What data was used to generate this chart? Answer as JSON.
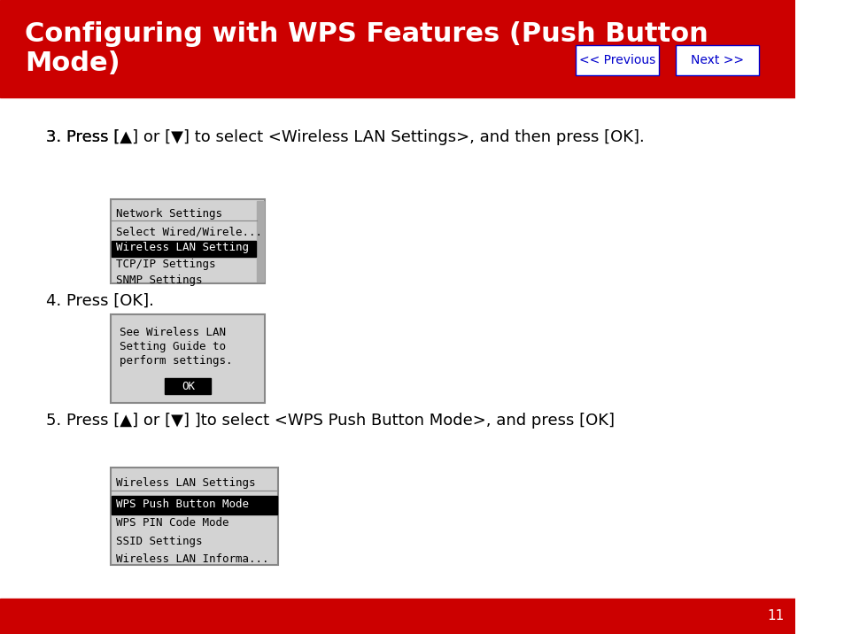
{
  "header_bg": "#CC0000",
  "header_text": "Configuring with WPS Features (Push Button\nMode)",
  "header_text_color": "#FFFFFF",
  "header_font_size": 22,
  "footer_bg": "#CC0000",
  "footer_number": "11",
  "footer_text_color": "#FFFFFF",
  "body_bg": "#FFFFFF",
  "btn_prev_text": "<< Previous",
  "btn_next_text": "Next >>",
  "btn_text_color": "#0000CC",
  "btn_bg": "#FFFFFF",
  "step3_text": "3. Press [▲] or [▼] to select <Wireless LAN Settings>, and then press [OK].",
  "step3_bold_parts": [
    "[▲]",
    "[▼]",
    "[OK]"
  ],
  "step4_text": "4. Press [OK].",
  "step4_bold_parts": [
    "[OK]"
  ],
  "step5_text": "5. Press [▲] or [▼] ]to select <WPS Push Button Mode>, and press [OK]",
  "step5_bold_parts": [
    "[▲]",
    "[▼]",
    "[OK]"
  ],
  "menu1_title": "Network Settings",
  "menu1_items": [
    "Select Wired/Wirele...",
    "Wireless LAN Setting",
    "TCP/IP Settings",
    "SNMP Settings"
  ],
  "menu1_selected": 1,
  "menu2_lines": [
    "See Wireless LAN",
    "Setting Guide to",
    "perform settings."
  ],
  "menu2_btn": "OK",
  "menu3_title": "Wireless LAN Settings",
  "menu3_items": [
    "WPS Push Button Mode",
    "WPS PIN Code Mode",
    "SSID Settings",
    "Wireless LAN Informa..."
  ],
  "menu3_selected": 0,
  "menu_bg": "#D3D3D3",
  "menu_border": "#888888",
  "menu_selected_bg": "#000000",
  "menu_selected_fg": "#FFFFFF",
  "menu_normal_fg": "#000000",
  "menu_font_size": 9,
  "step_font_size": 13,
  "body_text_color": "#000000"
}
